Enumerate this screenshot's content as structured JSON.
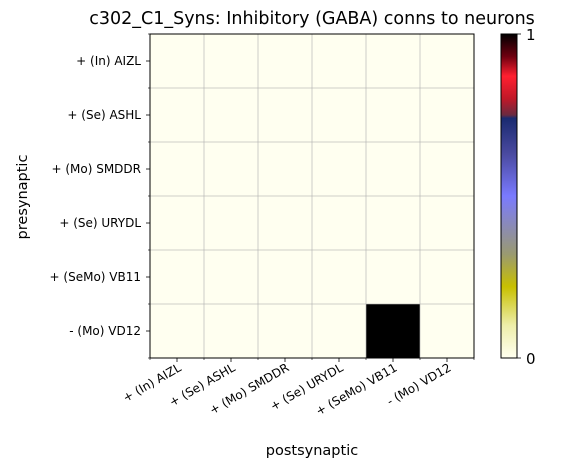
{
  "chart_data": {
    "type": "heatmap",
    "title": "c302_C1_Syns: Inhibitory (GABA) conns to neurons",
    "xlabel": "postsynaptic",
    "ylabel": "presynaptic",
    "rows": [
      "+ (In) AIZL",
      "+ (Se) ASHL",
      "+ (Mo) SMDDR",
      "+ (Se) URYDL",
      "+ (SeMo) VB11",
      "- (Mo) VD12"
    ],
    "columns": [
      "+ (In) AIZL",
      "+ (Se) ASHL",
      "+ (Mo) SMDDR",
      "+ (Se) URYDL",
      "+ (SeMo) VB11",
      "- (Mo) VD12"
    ],
    "values": [
      [
        0,
        0,
        0,
        0,
        0,
        0
      ],
      [
        0,
        0,
        0,
        0,
        0,
        0
      ],
      [
        0,
        0,
        0,
        0,
        0,
        0
      ],
      [
        0,
        0,
        0,
        0,
        0,
        0
      ],
      [
        0,
        0,
        0,
        0,
        0,
        0
      ],
      [
        0,
        0,
        0,
        0,
        1,
        0
      ]
    ],
    "colorbar": {
      "min": 0,
      "max": 1,
      "tick_labels": [
        "0",
        "1"
      ],
      "colormap": "gist_stern_r",
      "stops": [
        {
          "offset": 0.0,
          "color": "#fffff0"
        },
        {
          "offset": 0.1,
          "color": "#eeeeaa"
        },
        {
          "offset": 0.22,
          "color": "#c8c000"
        },
        {
          "offset": 0.32,
          "color": "#9a9a70"
        },
        {
          "offset": 0.5,
          "color": "#7a7aff"
        },
        {
          "offset": 0.63,
          "color": "#4a4aa0"
        },
        {
          "offset": 0.74,
          "color": "#1a2a70"
        },
        {
          "offset": 0.75,
          "color": "#6a2a40"
        },
        {
          "offset": 0.8,
          "color": "#c01828"
        },
        {
          "offset": 0.87,
          "color": "#ff2030"
        },
        {
          "offset": 0.93,
          "color": "#700010"
        },
        {
          "offset": 1.0,
          "color": "#000000"
        }
      ]
    },
    "grid": true
  }
}
